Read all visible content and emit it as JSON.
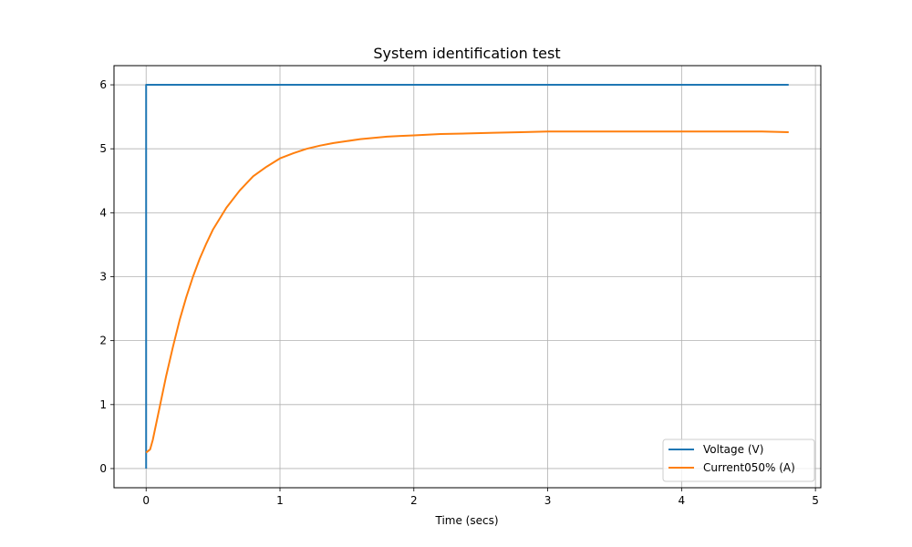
{
  "chart_data": {
    "type": "line",
    "title": "System identification test",
    "xlabel": "Time (secs)",
    "ylabel": "",
    "xlim": [
      -0.24,
      5.04
    ],
    "ylim": [
      -0.3,
      6.3
    ],
    "xticks": [
      0,
      1,
      2,
      3,
      4,
      5
    ],
    "yticks": [
      0,
      1,
      2,
      3,
      4,
      5,
      6
    ],
    "xtick_labels": [
      "0",
      "1",
      "2",
      "3",
      "4",
      "5"
    ],
    "ytick_labels": [
      "0",
      "1",
      "2",
      "3",
      "4",
      "5",
      "6"
    ],
    "grid": true,
    "legend_position": "lower-right",
    "series": [
      {
        "name": "Voltage (V)",
        "color": "#1f77b4",
        "x": [
          0,
          0,
          0.01,
          4.8
        ],
        "y": [
          0,
          6,
          6,
          6
        ]
      },
      {
        "name": "Current050% (A)",
        "color": "#ff7f0e",
        "x": [
          0,
          0.03,
          0.05,
          0.1,
          0.15,
          0.2,
          0.25,
          0.3,
          0.35,
          0.4,
          0.45,
          0.5,
          0.6,
          0.7,
          0.8,
          0.9,
          1.0,
          1.1,
          1.2,
          1.3,
          1.4,
          1.5,
          1.6,
          1.7,
          1.8,
          1.9,
          2.0,
          2.2,
          2.4,
          2.6,
          2.8,
          3.0,
          3.2,
          3.4,
          3.6,
          3.8,
          4.0,
          4.2,
          4.4,
          4.6,
          4.8
        ],
        "y": [
          0.25,
          0.3,
          0.45,
          0.95,
          1.45,
          1.9,
          2.32,
          2.68,
          3.0,
          3.28,
          3.52,
          3.74,
          4.08,
          4.35,
          4.57,
          4.72,
          4.85,
          4.93,
          5.0,
          5.05,
          5.09,
          5.12,
          5.15,
          5.17,
          5.19,
          5.2,
          5.21,
          5.23,
          5.24,
          5.25,
          5.26,
          5.27,
          5.27,
          5.27,
          5.27,
          5.27,
          5.27,
          5.27,
          5.27,
          5.27,
          5.26
        ]
      }
    ]
  }
}
